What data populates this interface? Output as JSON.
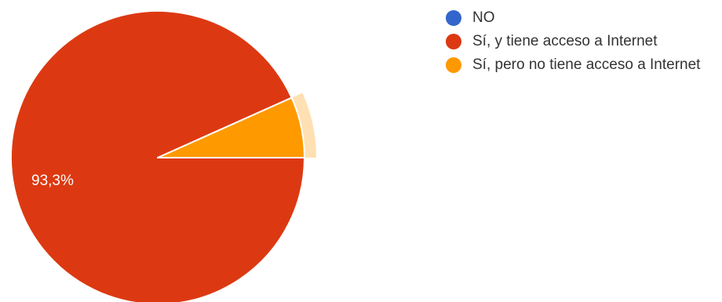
{
  "chart_data": {
    "type": "pie",
    "title": "",
    "slices": [
      {
        "label": "NO",
        "value": 0,
        "color": "#3366cc"
      },
      {
        "label": "Sí, y tiene acceso a Internet",
        "value": 93.3,
        "color": "#dc3912",
        "display": "93,3%"
      },
      {
        "label": "Sí, pero no tiene acceso a Internet",
        "value": 6.7,
        "color": "#ff9900",
        "highlighted": true
      }
    ],
    "legend_position": "right"
  }
}
